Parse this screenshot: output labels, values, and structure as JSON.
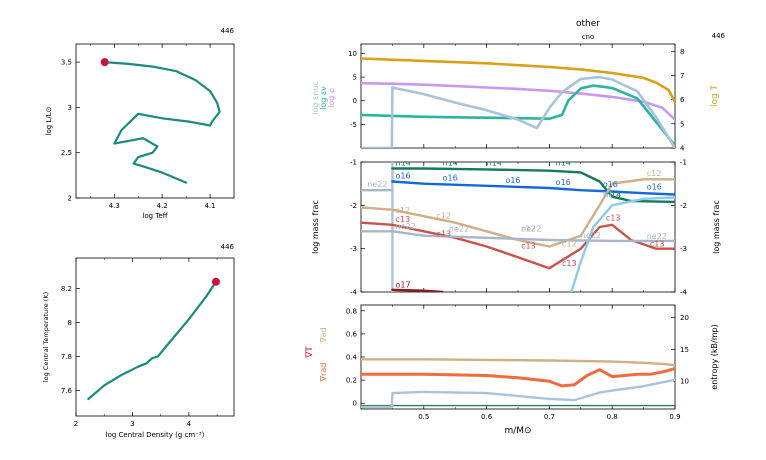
{
  "header": {
    "title": "other",
    "subtitle": "cno"
  },
  "colors": {
    "teal": "#1b8a7f",
    "red_marker": "#c8143c",
    "lilac": "#c899f0",
    "aqua": "#2bb5a0",
    "lightblue": "#a9c3dd",
    "gold": "#d8a118",
    "dkgreen": "#137b5c",
    "blue": "#1668d6",
    "tan": "#cfaf86",
    "salmon": "#c9534a",
    "sky": "#8ccbeb",
    "darkred": "#8c1b1b",
    "grey": "#a8b6c8",
    "orange": "#f06b3d"
  },
  "chart_data": [
    {
      "id": "hr",
      "type": "line",
      "model_number": "446",
      "xlabel": "log Teff",
      "ylabel": "log L/L⊙",
      "xlim": [
        4.38,
        4.05
      ],
      "ylim": [
        2.0,
        3.7
      ],
      "xticks": [
        4.3,
        4.2,
        4.1
      ],
      "yticks": [
        2,
        2.5,
        3,
        3.5
      ],
      "ytick_labels": [
        "2",
        "2.5",
        "3",
        "3.5"
      ],
      "series": [
        {
          "x": [
            4.15,
            4.2,
            4.24,
            4.26,
            4.25,
            4.22,
            4.21,
            4.24,
            4.27,
            4.3,
            4.285,
            4.25,
            4.2,
            4.14,
            4.1,
            4.095,
            4.08,
            4.085,
            4.1,
            4.13,
            4.17,
            4.22,
            4.27,
            4.32
          ],
          "y": [
            2.17,
            2.28,
            2.35,
            2.38,
            2.45,
            2.5,
            2.57,
            2.66,
            2.63,
            2.6,
            2.75,
            2.93,
            2.88,
            2.84,
            2.8,
            2.85,
            2.95,
            3.05,
            3.18,
            3.3,
            3.4,
            3.45,
            3.48,
            3.5
          ]
        }
      ],
      "marker": {
        "x": 4.32,
        "y": 3.5
      }
    },
    {
      "id": "core",
      "type": "line",
      "model_number": "446",
      "xlabel": "log Central Density (g cm⁻³)",
      "ylabel": "log Central Temperature (K)",
      "xlim": [
        2.0,
        4.8
      ],
      "ylim": [
        7.45,
        8.38
      ],
      "xticks": [
        2,
        3,
        4
      ],
      "yticks": [
        7.6,
        7.8,
        8,
        8.2
      ],
      "ytick_labels": [
        "7.6",
        "7.8",
        "8",
        "8.2"
      ],
      "series": [
        {
          "x": [
            2.22,
            2.5,
            2.8,
            3.1,
            3.25,
            3.35,
            3.45,
            3.7,
            4.0,
            4.3,
            4.48
          ],
          "y": [
            7.55,
            7.63,
            7.69,
            7.74,
            7.76,
            7.79,
            7.8,
            7.9,
            8.02,
            8.15,
            8.24
          ]
        }
      ],
      "marker": {
        "x": 4.48,
        "y": 8.24
      }
    },
    {
      "id": "profile_top",
      "type": "line",
      "model_number": "446",
      "xlim": [
        0.4,
        0.9
      ],
      "ylim": [
        -10,
        12
      ],
      "y2lim": [
        4,
        8.3
      ],
      "yticks": [
        -5,
        0,
        5,
        10
      ],
      "y2ticks": [
        4,
        5,
        6,
        7,
        8
      ],
      "ylabels": [
        "log ρ",
        "log εν",
        "log εnuc"
      ],
      "y2label": "log T",
      "series": [
        {
          "name": "log ρ",
          "color": "lilac",
          "x": [
            0.4,
            0.45,
            0.5,
            0.55,
            0.6,
            0.65,
            0.7,
            0.75,
            0.8,
            0.85,
            0.88,
            0.9
          ],
          "y": [
            3.7,
            3.6,
            3.4,
            3.1,
            2.8,
            2.5,
            2.1,
            1.5,
            0.8,
            -0.2,
            -1.5,
            -4.0
          ]
        },
        {
          "name": "log εν",
          "color": "aqua",
          "x": [
            0.4,
            0.45,
            0.5,
            0.55,
            0.6,
            0.65,
            0.7,
            0.72,
            0.73,
            0.75,
            0.77,
            0.8,
            0.84,
            0.87,
            0.9
          ],
          "y": [
            -3.0,
            -3.2,
            -3.4,
            -3.5,
            -3.6,
            -3.7,
            -3.8,
            -3.0,
            0.0,
            2.6,
            3.2,
            2.7,
            0.5,
            -4.5,
            -9.5
          ]
        },
        {
          "name": "log εnuc",
          "color": "lightblue",
          "x": [
            0.4,
            0.449,
            0.45,
            0.5,
            0.55,
            0.6,
            0.65,
            0.68,
            0.7,
            0.72,
            0.75,
            0.78,
            0.8,
            0.84,
            0.87,
            0.9
          ],
          "y": [
            -10,
            -10,
            2.8,
            1.4,
            -0.4,
            -2.0,
            -4.0,
            -5.8,
            -1.5,
            1.8,
            4.6,
            5.0,
            4.5,
            2.0,
            -3.5,
            -10
          ]
        },
        {
          "name": "log T",
          "color": "gold",
          "axis": "right",
          "x": [
            0.4,
            0.5,
            0.6,
            0.7,
            0.75,
            0.8,
            0.85,
            0.87,
            0.89,
            0.9
          ],
          "y": [
            7.7,
            7.6,
            7.5,
            7.35,
            7.25,
            7.1,
            6.9,
            6.7,
            6.4,
            5.9
          ]
        }
      ]
    },
    {
      "id": "profile_mid",
      "type": "line",
      "model_number": "446",
      "xlim": [
        0.4,
        0.9
      ],
      "ylim": [
        -4,
        -1
      ],
      "yticks": [
        -4,
        -3,
        -2,
        -1
      ],
      "y2ticks": [
        -4,
        -3,
        -2,
        -1
      ],
      "ylabel": "log mass frac",
      "y2label": "log mass frac",
      "series": [
        {
          "name": "n14",
          "color": "dkgreen",
          "x": [
            0.45,
            0.5,
            0.6,
            0.7,
            0.75,
            0.78,
            0.8,
            0.83,
            0.9
          ],
          "y": [
            -1.15,
            -1.15,
            -1.17,
            -1.2,
            -1.24,
            -1.45,
            -1.8,
            -1.9,
            -1.92
          ]
        },
        {
          "name": "o16",
          "color": "blue",
          "x": [
            0.45,
            0.5,
            0.6,
            0.7,
            0.75,
            0.8,
            0.85,
            0.9
          ],
          "y": [
            -1.45,
            -1.5,
            -1.55,
            -1.6,
            -1.65,
            -1.68,
            -1.72,
            -1.75
          ]
        },
        {
          "name": "c12",
          "color": "tan",
          "x": [
            0.4,
            0.45,
            0.5,
            0.55,
            0.6,
            0.65,
            0.7,
            0.75,
            0.78,
            0.8,
            0.85,
            0.9
          ],
          "y": [
            -2.05,
            -2.1,
            -2.25,
            -2.4,
            -2.6,
            -2.8,
            -2.95,
            -2.7,
            -2.0,
            -1.5,
            -1.4,
            -1.4
          ]
        },
        {
          "name": "c13",
          "color": "salmon",
          "x": [
            0.4,
            0.45,
            0.5,
            0.55,
            0.6,
            0.65,
            0.7,
            0.75,
            0.78,
            0.8,
            0.83,
            0.87,
            0.9
          ],
          "y": [
            -2.4,
            -2.45,
            -2.6,
            -2.75,
            -2.95,
            -3.2,
            -3.45,
            -3.0,
            -2.5,
            -2.45,
            -2.8,
            -3.0,
            -3.0
          ]
        },
        {
          "name": "ne22",
          "color": "grey",
          "x": [
            0.4,
            0.45,
            0.5,
            0.6,
            0.7,
            0.8,
            0.9
          ],
          "y": [
            -2.6,
            -2.6,
            -2.7,
            -2.75,
            -2.8,
            -2.82,
            -2.82
          ]
        },
        {
          "name": "ne22",
          "color": "grey",
          "x": [
            0.4,
            0.449
          ],
          "y": [
            -1.65,
            -1.65
          ]
        },
        {
          "name": "h1",
          "color": "sky",
          "x": [
            0.735,
            0.75,
            0.77,
            0.8,
            0.85,
            0.9
          ],
          "y": [
            -4.0,
            -3.3,
            -2.5,
            -2.0,
            -1.85,
            -1.82
          ]
        },
        {
          "name": "o17",
          "color": "darkred",
          "x": [
            0.45,
            0.5,
            0.53
          ],
          "y": [
            -3.95,
            -3.97,
            -4.0
          ]
        }
      ],
      "vertical_line": {
        "x": 0.45,
        "color": "lightblue"
      },
      "annotations": [
        {
          "text": "n14",
          "x": 0.455,
          "y": -1.08,
          "color": "dkgreen"
        },
        {
          "text": "n14",
          "x": 0.53,
          "y": -1.08,
          "color": "dkgreen"
        },
        {
          "text": "n14",
          "x": 0.6,
          "y": -1.08,
          "color": "dkgreen"
        },
        {
          "text": "n14",
          "x": 0.71,
          "y": -1.08,
          "color": "dkgreen"
        },
        {
          "text": "n14",
          "x": 0.79,
          "y": -1.82,
          "color": "dkgreen"
        },
        {
          "text": "o16",
          "x": 0.455,
          "y": -1.38,
          "color": "blue"
        },
        {
          "text": "o16",
          "x": 0.53,
          "y": -1.43,
          "color": "blue"
        },
        {
          "text": "o16",
          "x": 0.63,
          "y": -1.48,
          "color": "blue"
        },
        {
          "text": "o16",
          "x": 0.71,
          "y": -1.53,
          "color": "blue"
        },
        {
          "text": "o16",
          "x": 0.785,
          "y": -1.58,
          "color": "blue"
        },
        {
          "text": "o16",
          "x": 0.855,
          "y": -1.63,
          "color": "blue"
        },
        {
          "text": "ne22",
          "x": 0.41,
          "y": -1.58,
          "color": "grey"
        },
        {
          "text": "c12",
          "x": 0.455,
          "y": -2.18,
          "color": "tan"
        },
        {
          "text": "c12",
          "x": 0.52,
          "y": -2.3,
          "color": "tan"
        },
        {
          "text": "c12",
          "x": 0.655,
          "y": -2.6,
          "color": "tan"
        },
        {
          "text": "c12",
          "x": 0.72,
          "y": -2.95,
          "color": "tan"
        },
        {
          "text": "c12",
          "x": 0.855,
          "y": -1.32,
          "color": "tan"
        },
        {
          "text": "c13",
          "x": 0.455,
          "y": -2.38,
          "color": "salmon"
        },
        {
          "text": "c13",
          "x": 0.52,
          "y": -2.72,
          "color": "salmon"
        },
        {
          "text": "c13",
          "x": 0.655,
          "y": -3.0,
          "color": "salmon"
        },
        {
          "text": "c13",
          "x": 0.72,
          "y": -3.4,
          "color": "salmon"
        },
        {
          "text": "c13",
          "x": 0.79,
          "y": -2.35,
          "color": "salmon"
        },
        {
          "text": "c13",
          "x": 0.86,
          "y": -2.95,
          "color": "salmon"
        },
        {
          "text": "ne22",
          "x": 0.455,
          "y": -2.55,
          "color": "grey"
        },
        {
          "text": "ne22",
          "x": 0.54,
          "y": -2.6,
          "color": "grey"
        },
        {
          "text": "ne22",
          "x": 0.655,
          "y": -2.6,
          "color": "grey"
        },
        {
          "text": "ne22",
          "x": 0.75,
          "y": -2.75,
          "color": "grey"
        },
        {
          "text": "ne22",
          "x": 0.855,
          "y": -2.78,
          "color": "grey"
        },
        {
          "text": "h1",
          "x": 0.785,
          "y": -1.82,
          "color": "sky"
        },
        {
          "text": "o17",
          "x": 0.455,
          "y": -3.9,
          "color": "darkred"
        }
      ]
    },
    {
      "id": "profile_bottom",
      "type": "line",
      "model_number": "446",
      "xlim": [
        0.4,
        0.9
      ],
      "ylim": [
        -0.05,
        0.85
      ],
      "y2lim": [
        5.6,
        22
      ],
      "yticks": [
        0,
        0.2,
        0.4,
        0.6,
        0.8
      ],
      "ytick_labels": [
        "0",
        "0.2",
        "0.4",
        "0.6",
        "0.8"
      ],
      "y2ticks": [
        10,
        15,
        20
      ],
      "xticks": [
        0.5,
        0.6,
        0.7,
        0.8,
        0.9
      ],
      "xtick_labels": [
        "0.5",
        "0.6",
        "0.7",
        "0.8",
        "0.9"
      ],
      "xlabel": "m/M⊙",
      "ylabels": [
        "∇ad",
        "∇T",
        "∇rad"
      ],
      "y2label": "entropy (kB/mp)",
      "series": [
        {
          "name": "∇ad",
          "color": "tan",
          "x": [
            0.4,
            0.5,
            0.6,
            0.7,
            0.8,
            0.85,
            0.88,
            0.9
          ],
          "y": [
            0.38,
            0.38,
            0.375,
            0.37,
            0.36,
            0.35,
            0.34,
            0.33
          ]
        },
        {
          "name": "∇rad",
          "color": "orange",
          "x": [
            0.4,
            0.45,
            0.5,
            0.55,
            0.6,
            0.65,
            0.7,
            0.72,
            0.74,
            0.76,
            0.78,
            0.8,
            0.82,
            0.84,
            0.86,
            0.88,
            0.9
          ],
          "y": [
            0.25,
            0.25,
            0.25,
            0.245,
            0.24,
            0.22,
            0.19,
            0.15,
            0.16,
            0.24,
            0.29,
            0.23,
            0.24,
            0.25,
            0.25,
            0.27,
            0.3
          ]
        },
        {
          "name": "entropy",
          "color": "lightblue",
          "axis": "right",
          "x": [
            0.4,
            0.449,
            0.45,
            0.5,
            0.6,
            0.7,
            0.74,
            0.78,
            0.8,
            0.85,
            0.9
          ],
          "y": [
            5.9,
            5.9,
            8.1,
            8.3,
            8.1,
            7.2,
            7.0,
            8.2,
            8.5,
            9.2,
            10.2
          ]
        }
      ]
    }
  ]
}
